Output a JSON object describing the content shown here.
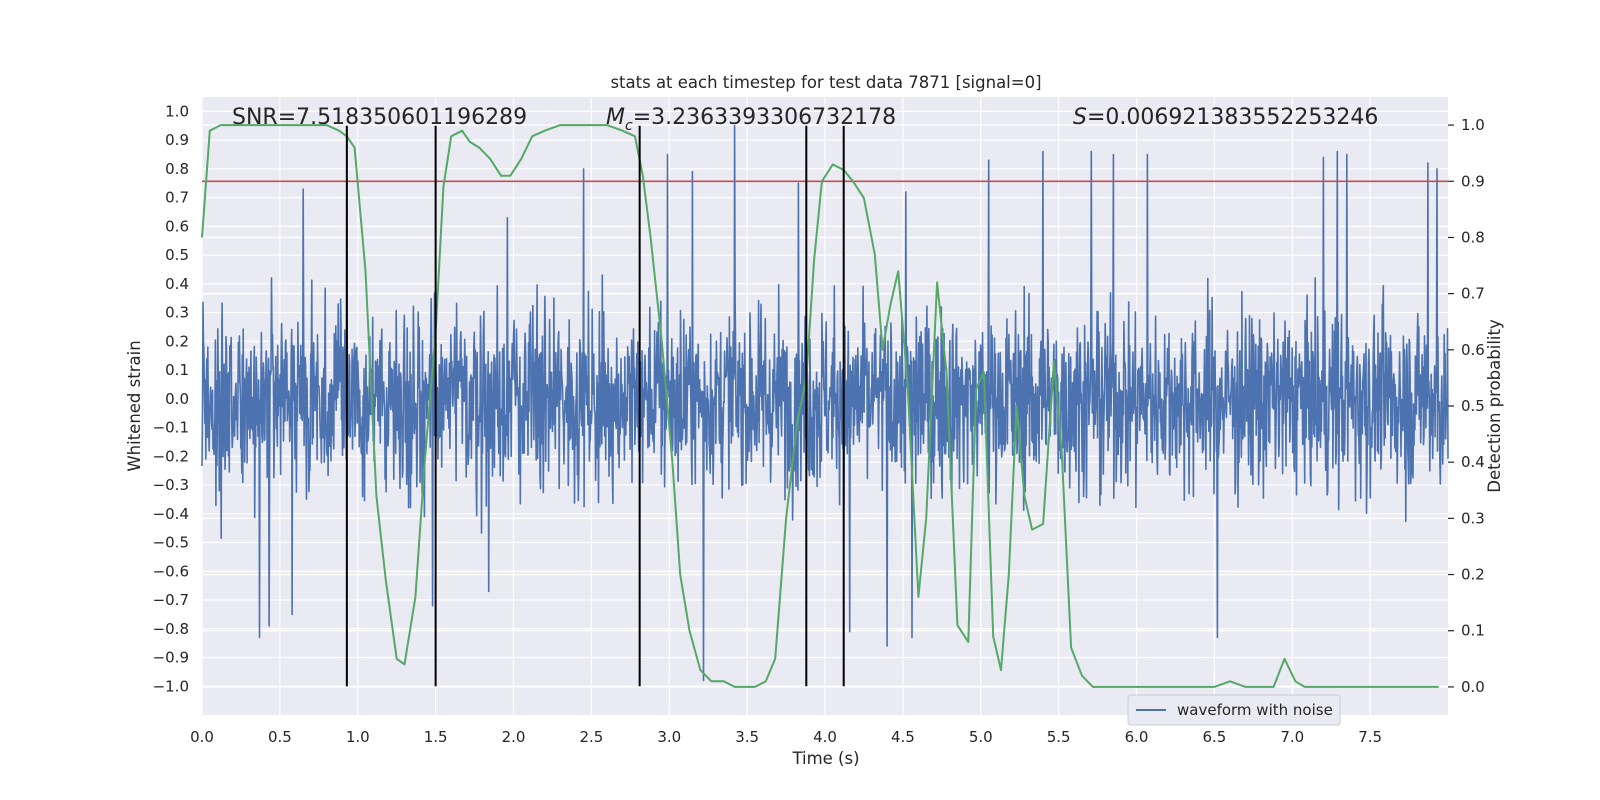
{
  "chart_data": {
    "type": "line",
    "title": "stats at each timestep for test data 7871 [signal=0]",
    "xlabel": "Time (s)",
    "ylabel": "Whitened strain",
    "ylabel_right": "Detection probability",
    "xlim": [
      0.0,
      8.0
    ],
    "ylim": [
      -1.1,
      1.05
    ],
    "ylim_right": [
      -0.05,
      1.05
    ],
    "x_ticks": [
      "0.0",
      "0.5",
      "1.0",
      "1.5",
      "2.0",
      "2.5",
      "3.0",
      "3.5",
      "4.0",
      "4.5",
      "5.0",
      "5.5",
      "6.0",
      "6.5",
      "7.0",
      "7.5"
    ],
    "y_ticks": [
      "1.0",
      "0.9",
      "0.8",
      "0.7",
      "0.6",
      "0.5",
      "0.4",
      "0.3",
      "0.2",
      "0.1",
      "0.0",
      "-0.1",
      "-0.2",
      "-0.3",
      "-0.4",
      "-0.5",
      "-0.6",
      "-0.7",
      "-0.8",
      "-0.9",
      "-1.0"
    ],
    "y_ticks_right": [
      "1.0",
      "0.9",
      "0.8",
      "0.7",
      "0.6",
      "0.5",
      "0.4",
      "0.3",
      "0.2",
      "0.1",
      "0.0"
    ],
    "annotations": {
      "snr": "SNR=7.518350601196289",
      "mc_symbol": "M",
      "mc_sub": "c",
      "mc_value": "=3.2363393306732178",
      "s_symbol": "S",
      "s_value": "=0.006921383552253246"
    },
    "legend": {
      "label": "waveform with noise",
      "placement": "lower-right"
    },
    "threshold_right": 0.9,
    "vertical_lines_x": [
      0.93,
      1.5,
      2.81,
      3.88,
      4.12
    ],
    "vertical_lines_yrange": [
      -1.0,
      0.95
    ],
    "waveform": {
      "name": "waveform with noise",
      "x_range": [
        0.0,
        8.0
      ],
      "typical_amplitude": 0.35,
      "peaks": [
        [
          0.37,
          -0.83
        ],
        [
          0.43,
          -0.79
        ],
        [
          0.65,
          0.73
        ],
        [
          0.58,
          -0.75
        ],
        [
          0.93,
          0.72
        ],
        [
          1.48,
          -0.72
        ],
        [
          1.96,
          0.63
        ],
        [
          1.84,
          -0.67
        ],
        [
          2.45,
          0.8
        ],
        [
          2.99,
          0.85
        ],
        [
          3.15,
          0.79
        ],
        [
          3.22,
          -0.98
        ],
        [
          3.42,
          0.95
        ],
        [
          3.83,
          0.75
        ],
        [
          4.16,
          -0.81
        ],
        [
          4.4,
          -0.86
        ],
        [
          4.52,
          0.72
        ],
        [
          4.56,
          -0.83
        ],
        [
          5.05,
          0.83
        ],
        [
          5.4,
          0.86
        ],
        [
          5.71,
          0.86
        ],
        [
          5.85,
          0.85
        ],
        [
          6.07,
          0.85
        ],
        [
          6.52,
          -0.83
        ],
        [
          7.2,
          0.84
        ],
        [
          7.29,
          0.86
        ],
        [
          7.35,
          0.85
        ],
        [
          7.87,
          0.82
        ],
        [
          7.93,
          0.8
        ]
      ],
      "color": "#4c72b0"
    },
    "probability": {
      "name": "detection probability",
      "color": "#55a868",
      "x": [
        0.0,
        0.05,
        0.12,
        0.2,
        0.3,
        0.4,
        0.5,
        0.6,
        0.7,
        0.8,
        0.88,
        0.93,
        0.98,
        1.05,
        1.12,
        1.18,
        1.25,
        1.3,
        1.37,
        1.43,
        1.5,
        1.55,
        1.6,
        1.67,
        1.72,
        1.78,
        1.85,
        1.92,
        1.98,
        2.05,
        2.12,
        2.2,
        2.3,
        2.4,
        2.5,
        2.6,
        2.7,
        2.78,
        2.83,
        2.88,
        2.95,
        3.02,
        3.07,
        3.13,
        3.2,
        3.27,
        3.35,
        3.42,
        3.5,
        3.55,
        3.62,
        3.68,
        3.75,
        3.82,
        3.88,
        3.93,
        3.98,
        4.05,
        4.12,
        4.18,
        4.25,
        4.32,
        4.37,
        4.42,
        4.47,
        4.53,
        4.6,
        4.65,
        4.72,
        4.78,
        4.85,
        4.92,
        4.97,
        5.02,
        5.08,
        5.13,
        5.18,
        5.23,
        5.28,
        5.33,
        5.4,
        5.47,
        5.52,
        5.58,
        5.65,
        5.72,
        5.78,
        5.87,
        5.95,
        6.05,
        6.15,
        6.25,
        6.3,
        6.4,
        6.5,
        6.6,
        6.7,
        6.8,
        6.88,
        6.95,
        7.02,
        7.08,
        7.15,
        7.25,
        7.35,
        7.45,
        7.55,
        7.65,
        7.75,
        7.85,
        7.94
      ],
      "values": [
        0.8,
        0.99,
        1.0,
        1.0,
        1.0,
        1.0,
        1.0,
        1.0,
        1.0,
        1.0,
        0.99,
        0.98,
        0.96,
        0.74,
        0.34,
        0.19,
        0.05,
        0.04,
        0.16,
        0.4,
        0.63,
        0.89,
        0.98,
        0.99,
        0.97,
        0.96,
        0.94,
        0.91,
        0.91,
        0.94,
        0.98,
        0.99,
        1.0,
        1.0,
        1.0,
        1.0,
        0.99,
        0.98,
        0.91,
        0.8,
        0.62,
        0.4,
        0.2,
        0.1,
        0.03,
        0.01,
        0.01,
        0.0,
        0.0,
        0.0,
        0.01,
        0.05,
        0.3,
        0.47,
        0.55,
        0.76,
        0.9,
        0.93,
        0.92,
        0.9,
        0.87,
        0.77,
        0.6,
        0.68,
        0.74,
        0.54,
        0.16,
        0.3,
        0.72,
        0.56,
        0.11,
        0.08,
        0.53,
        0.56,
        0.09,
        0.03,
        0.2,
        0.5,
        0.34,
        0.28,
        0.29,
        0.58,
        0.42,
        0.07,
        0.02,
        0.0,
        0.0,
        0.0,
        0.0,
        0.0,
        0.0,
        0.0,
        0.0,
        0.0,
        0.0,
        0.01,
        0.0,
        0.0,
        0.0,
        0.05,
        0.01,
        0.0,
        0.0,
        0.0,
        0.0,
        0.0,
        0.0,
        0.0,
        0.0,
        0.0,
        0.0
      ],
      "axis": "right"
    },
    "colors": {
      "background": "#eaeaf2",
      "grid": "#ffffff",
      "threshold": "#c44e52",
      "vertical_lines": "#000000"
    },
    "grid": true
  }
}
